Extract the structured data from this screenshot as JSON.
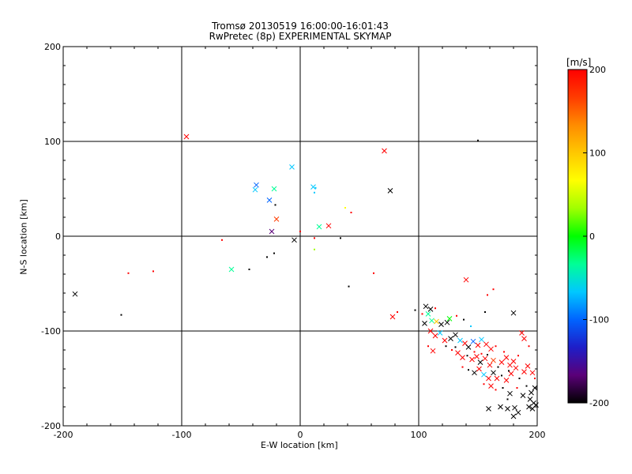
{
  "chart_data": {
    "type": "scatter",
    "title": "Tromsø 20130519 16:00:00-16:01:43",
    "subtitle": "RwPretec (8p) EXPERIMENTAL SKYMAP",
    "xlabel": "E-W location [km]",
    "ylabel": "N-S location [km]",
    "xlim": [
      -200,
      200
    ],
    "ylim": [
      -200,
      200
    ],
    "xticks": [
      "-200",
      "-100",
      "0",
      "100",
      "200"
    ],
    "yticks": [
      "-200",
      "-100",
      "0",
      "100",
      "200"
    ],
    "grid": true,
    "colorbar": {
      "label": "[m/s]",
      "range": [
        -200,
        200
      ],
      "ticks": [
        "200",
        "100",
        "0",
        "-100",
        "-200"
      ],
      "colors": [
        "#000000",
        "#5a0078",
        "#1e1ec8",
        "#0064ff",
        "#00c8ff",
        "#00ff96",
        "#00ff00",
        "#a0ff00",
        "#ffff00",
        "#ffc800",
        "#ff8c00",
        "#ff3c00",
        "#ff0000"
      ]
    },
    "points": [
      {
        "x": -96,
        "y": 105,
        "v": 190,
        "m": "x"
      },
      {
        "x": 71,
        "y": 90,
        "v": 190,
        "m": "x"
      },
      {
        "x": -37,
        "y": 54,
        "v": -110,
        "m": "x"
      },
      {
        "x": -38,
        "y": 49,
        "v": -80,
        "m": "x"
      },
      {
        "x": -22,
        "y": 50,
        "v": -50,
        "m": "x"
      },
      {
        "x": -26,
        "y": 38,
        "v": -90,
        "m": "x"
      },
      {
        "x": -7,
        "y": 73,
        "v": -60,
        "m": "x"
      },
      {
        "x": 11,
        "y": 52,
        "v": -80,
        "m": "x"
      },
      {
        "x": 13,
        "y": 51,
        "v": -70,
        "m": "d"
      },
      {
        "x": 12,
        "y": 46,
        "v": -70,
        "m": "d"
      },
      {
        "x": 76,
        "y": 48,
        "v": -200,
        "m": "x"
      },
      {
        "x": -20,
        "y": 18,
        "v": 180,
        "m": "x"
      },
      {
        "x": -21,
        "y": 33,
        "v": -200,
        "m": "d"
      },
      {
        "x": 24,
        "y": 11,
        "v": 190,
        "m": "x"
      },
      {
        "x": 16,
        "y": 10,
        "v": -40,
        "m": "x"
      },
      {
        "x": 38,
        "y": 30,
        "v": 60,
        "m": "d"
      },
      {
        "x": 43,
        "y": 25,
        "v": 190,
        "m": "d"
      },
      {
        "x": -24,
        "y": 5,
        "v": -170,
        "m": "x"
      },
      {
        "x": -5,
        "y": -4,
        "v": -200,
        "m": "x"
      },
      {
        "x": 0,
        "y": 5,
        "v": 190,
        "m": "d"
      },
      {
        "x": 12,
        "y": -2,
        "v": 190,
        "m": "d"
      },
      {
        "x": 12,
        "y": -14,
        "v": 20,
        "m": "d"
      },
      {
        "x": 34,
        "y": -2,
        "v": -200,
        "m": "d"
      },
      {
        "x": -66,
        "y": -4,
        "v": 190,
        "m": "d"
      },
      {
        "x": -58,
        "y": -35,
        "v": -40,
        "m": "x"
      },
      {
        "x": -43,
        "y": -35,
        "v": -200,
        "m": "d"
      },
      {
        "x": -28,
        "y": -22,
        "v": -200,
        "m": "d"
      },
      {
        "x": -22,
        "y": -18,
        "v": -200,
        "m": "d"
      },
      {
        "x": -124,
        "y": -37,
        "v": 190,
        "m": "d"
      },
      {
        "x": -145,
        "y": -39,
        "v": 190,
        "m": "d"
      },
      {
        "x": -190,
        "y": -61,
        "v": -200,
        "m": "x"
      },
      {
        "x": -151,
        "y": -83,
        "v": -200,
        "m": "d"
      },
      {
        "x": 41,
        "y": -53,
        "v": -200,
        "m": "d"
      },
      {
        "x": 62,
        "y": -39,
        "v": 190,
        "m": "d"
      },
      {
        "x": 140,
        "y": -46,
        "v": 190,
        "m": "x"
      },
      {
        "x": 163,
        "y": -56,
        "v": 190,
        "m": "d"
      },
      {
        "x": 158,
        "y": -62,
        "v": 190,
        "m": "d"
      },
      {
        "x": 150,
        "y": 101,
        "v": -200,
        "m": "d"
      },
      {
        "x": 78,
        "y": -85,
        "v": 190,
        "m": "x"
      },
      {
        "x": 82,
        "y": -80,
        "v": 190,
        "m": "d"
      },
      {
        "x": 97,
        "y": -78,
        "v": -200,
        "m": "d"
      },
      {
        "x": 103,
        "y": -82,
        "v": 190,
        "m": "d"
      },
      {
        "x": 106,
        "y": -74,
        "v": -200,
        "m": "x"
      },
      {
        "x": 110,
        "y": -77,
        "v": -200,
        "m": "x"
      },
      {
        "x": 108,
        "y": -82,
        "v": -50,
        "m": "x"
      },
      {
        "x": 114,
        "y": -76,
        "v": 190,
        "m": "d"
      },
      {
        "x": 105,
        "y": -92,
        "v": -200,
        "m": "x"
      },
      {
        "x": 111,
        "y": -89,
        "v": -40,
        "m": "x"
      },
      {
        "x": 115,
        "y": -90,
        "v": 100,
        "m": "x"
      },
      {
        "x": 119,
        "y": -93,
        "v": -200,
        "m": "x"
      },
      {
        "x": 124,
        "y": -91,
        "v": -200,
        "m": "x"
      },
      {
        "x": 126,
        "y": -87,
        "v": 10,
        "m": "x"
      },
      {
        "x": 132,
        "y": -84,
        "v": 190,
        "m": "d"
      },
      {
        "x": 138,
        "y": -88,
        "v": -200,
        "m": "d"
      },
      {
        "x": 144,
        "y": -95,
        "v": -60,
        "m": "d"
      },
      {
        "x": 156,
        "y": -80,
        "v": -200,
        "m": "d"
      },
      {
        "x": 180,
        "y": -81,
        "v": -200,
        "m": "x"
      },
      {
        "x": 110,
        "y": -100,
        "v": 190,
        "m": "x"
      },
      {
        "x": 114,
        "y": -105,
        "v": 190,
        "m": "x"
      },
      {
        "x": 118,
        "y": -102,
        "v": -60,
        "m": "x"
      },
      {
        "x": 122,
        "y": -110,
        "v": 190,
        "m": "x"
      },
      {
        "x": 127,
        "y": -108,
        "v": -200,
        "m": "x"
      },
      {
        "x": 131,
        "y": -104,
        "v": -200,
        "m": "x"
      },
      {
        "x": 135,
        "y": -110,
        "v": -60,
        "m": "x"
      },
      {
        "x": 139,
        "y": -113,
        "v": 190,
        "m": "x"
      },
      {
        "x": 142,
        "y": -117,
        "v": -200,
        "m": "x"
      },
      {
        "x": 146,
        "y": -111,
        "v": -90,
        "m": "x"
      },
      {
        "x": 150,
        "y": -115,
        "v": 190,
        "m": "x"
      },
      {
        "x": 153,
        "y": -109,
        "v": -80,
        "m": "x"
      },
      {
        "x": 157,
        "y": -114,
        "v": 190,
        "m": "x"
      },
      {
        "x": 161,
        "y": -119,
        "v": 190,
        "m": "x"
      },
      {
        "x": 165,
        "y": -116,
        "v": 190,
        "m": "d"
      },
      {
        "x": 128,
        "y": -120,
        "v": 190,
        "m": "d"
      },
      {
        "x": 133,
        "y": -123,
        "v": 190,
        "m": "x"
      },
      {
        "x": 137,
        "y": -128,
        "v": 190,
        "m": "x"
      },
      {
        "x": 141,
        "y": -126,
        "v": -200,
        "m": "d"
      },
      {
        "x": 145,
        "y": -130,
        "v": 190,
        "m": "x"
      },
      {
        "x": 149,
        "y": -127,
        "v": 190,
        "m": "x"
      },
      {
        "x": 152,
        "y": -133,
        "v": -200,
        "m": "x"
      },
      {
        "x": 156,
        "y": -129,
        "v": 190,
        "m": "x"
      },
      {
        "x": 160,
        "y": -136,
        "v": 190,
        "m": "x"
      },
      {
        "x": 163,
        "y": -131,
        "v": 150,
        "m": "x"
      },
      {
        "x": 167,
        "y": -138,
        "v": -200,
        "m": "d"
      },
      {
        "x": 170,
        "y": -133,
        "v": 190,
        "m": "x"
      },
      {
        "x": 174,
        "y": -128,
        "v": 190,
        "m": "x"
      },
      {
        "x": 177,
        "y": -136,
        "v": 190,
        "m": "x"
      },
      {
        "x": 180,
        "y": -132,
        "v": 190,
        "m": "x"
      },
      {
        "x": 184,
        "y": -126,
        "v": 190,
        "m": "d"
      },
      {
        "x": 187,
        "y": -102,
        "v": 190,
        "m": "x"
      },
      {
        "x": 189,
        "y": -108,
        "v": 190,
        "m": "x"
      },
      {
        "x": 193,
        "y": -116,
        "v": 190,
        "m": "d"
      },
      {
        "x": 137,
        "y": -138,
        "v": 190,
        "m": "d"
      },
      {
        "x": 142,
        "y": -141,
        "v": -200,
        "m": "d"
      },
      {
        "x": 147,
        "y": -144,
        "v": -200,
        "m": "x"
      },
      {
        "x": 151,
        "y": -140,
        "v": 190,
        "m": "x"
      },
      {
        "x": 155,
        "y": -146,
        "v": -60,
        "m": "x"
      },
      {
        "x": 159,
        "y": -150,
        "v": 190,
        "m": "x"
      },
      {
        "x": 163,
        "y": -144,
        "v": -200,
        "m": "x"
      },
      {
        "x": 166,
        "y": -150,
        "v": 190,
        "m": "x"
      },
      {
        "x": 170,
        "y": -147,
        "v": -200,
        "m": "d"
      },
      {
        "x": 174,
        "y": -152,
        "v": 190,
        "m": "x"
      },
      {
        "x": 178,
        "y": -145,
        "v": 190,
        "m": "x"
      },
      {
        "x": 182,
        "y": -139,
        "v": 190,
        "m": "x"
      },
      {
        "x": 185,
        "y": -150,
        "v": -200,
        "m": "d"
      },
      {
        "x": 189,
        "y": -143,
        "v": 190,
        "m": "x"
      },
      {
        "x": 192,
        "y": -137,
        "v": 190,
        "m": "x"
      },
      {
        "x": 196,
        "y": -144,
        "v": 190,
        "m": "x"
      },
      {
        "x": 198,
        "y": -150,
        "v": 190,
        "m": "d"
      },
      {
        "x": 161,
        "y": -158,
        "v": 190,
        "m": "x"
      },
      {
        "x": 165,
        "y": -162,
        "v": 190,
        "m": "d"
      },
      {
        "x": 171,
        "y": -160,
        "v": -200,
        "m": "d"
      },
      {
        "x": 177,
        "y": -166,
        "v": -200,
        "m": "x"
      },
      {
        "x": 183,
        "y": -160,
        "v": 190,
        "m": "d"
      },
      {
        "x": 188,
        "y": -168,
        "v": -200,
        "m": "x"
      },
      {
        "x": 191,
        "y": -158,
        "v": -200,
        "m": "d"
      },
      {
        "x": 195,
        "y": -165,
        "v": -200,
        "m": "x"
      },
      {
        "x": 198,
        "y": -160,
        "v": -200,
        "m": "x"
      },
      {
        "x": 194,
        "y": -172,
        "v": -200,
        "m": "x"
      },
      {
        "x": 197,
        "y": -176,
        "v": -200,
        "m": "x"
      },
      {
        "x": 193,
        "y": -180,
        "v": -200,
        "m": "x"
      },
      {
        "x": 199,
        "y": -178,
        "v": -200,
        "m": "x"
      },
      {
        "x": 196,
        "y": -182,
        "v": -200,
        "m": "x"
      },
      {
        "x": 159,
        "y": -182,
        "v": -200,
        "m": "x"
      },
      {
        "x": 169,
        "y": -180,
        "v": -200,
        "m": "x"
      },
      {
        "x": 175,
        "y": -182,
        "v": -200,
        "m": "x"
      },
      {
        "x": 181,
        "y": -181,
        "v": -200,
        "m": "x"
      },
      {
        "x": 180,
        "y": -190,
        "v": -200,
        "m": "x"
      },
      {
        "x": 184,
        "y": -186,
        "v": -200,
        "m": "x"
      },
      {
        "x": 112,
        "y": -121,
        "v": 190,
        "m": "x"
      },
      {
        "x": 108,
        "y": -116,
        "v": 190,
        "m": "d"
      },
      {
        "x": 123,
        "y": -116,
        "v": -200,
        "m": "d"
      },
      {
        "x": 131,
        "y": -117,
        "v": -200,
        "m": "d"
      },
      {
        "x": 147,
        "y": -122,
        "v": 190,
        "m": "d"
      },
      {
        "x": 153,
        "y": -124,
        "v": 190,
        "m": "d"
      },
      {
        "x": 158,
        "y": -125,
        "v": -200,
        "m": "d"
      },
      {
        "x": 172,
        "y": -122,
        "v": 190,
        "m": "d"
      },
      {
        "x": 176,
        "y": -142,
        "v": -200,
        "m": "d"
      },
      {
        "x": 155,
        "y": -156,
        "v": 190,
        "m": "d"
      },
      {
        "x": 175,
        "y": -172,
        "v": -200,
        "m": "d"
      }
    ]
  }
}
